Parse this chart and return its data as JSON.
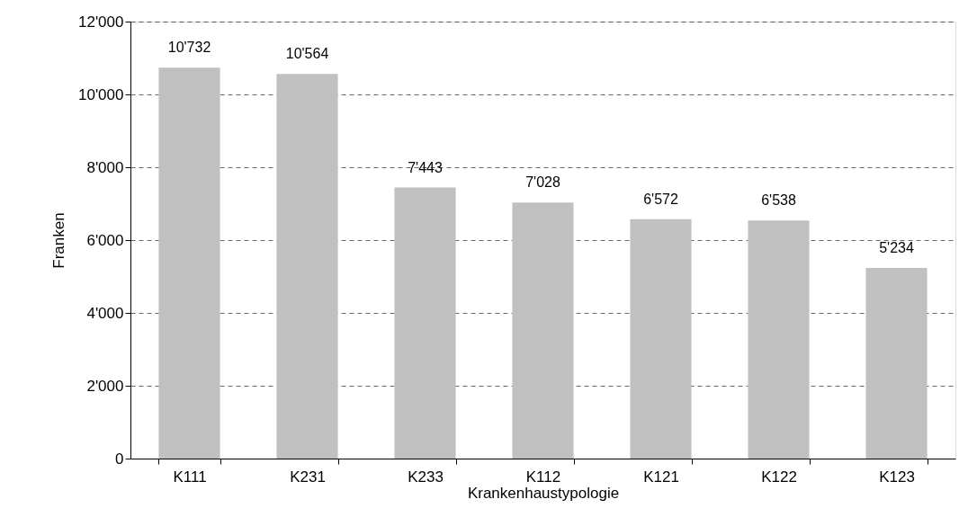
{
  "chart_data": {
    "type": "bar",
    "xlabel": "Krankenhaustypologie",
    "ylabel": "Franken",
    "categories": [
      "K111",
      "K231",
      "K233",
      "K112",
      "K121",
      "K122",
      "K123"
    ],
    "values": [
      10732,
      10564,
      7443,
      7028,
      6572,
      6538,
      5234
    ],
    "value_labels": [
      "10'732",
      "10'564",
      "7'443",
      "7'028",
      "6'572",
      "6'538",
      "5'234"
    ],
    "color": "#c0c0c0",
    "ylim": [
      0,
      12000
    ],
    "yticks": [
      {
        "value": 0,
        "label": "0"
      },
      {
        "value": 2000,
        "label": "2'000"
      },
      {
        "value": 4000,
        "label": "4'000"
      },
      {
        "value": 6000,
        "label": "6'000"
      },
      {
        "value": 8000,
        "label": "8'000"
      },
      {
        "value": 10000,
        "label": "10'000"
      },
      {
        "value": 12000,
        "label": "12'000"
      }
    ],
    "grid": "y"
  }
}
